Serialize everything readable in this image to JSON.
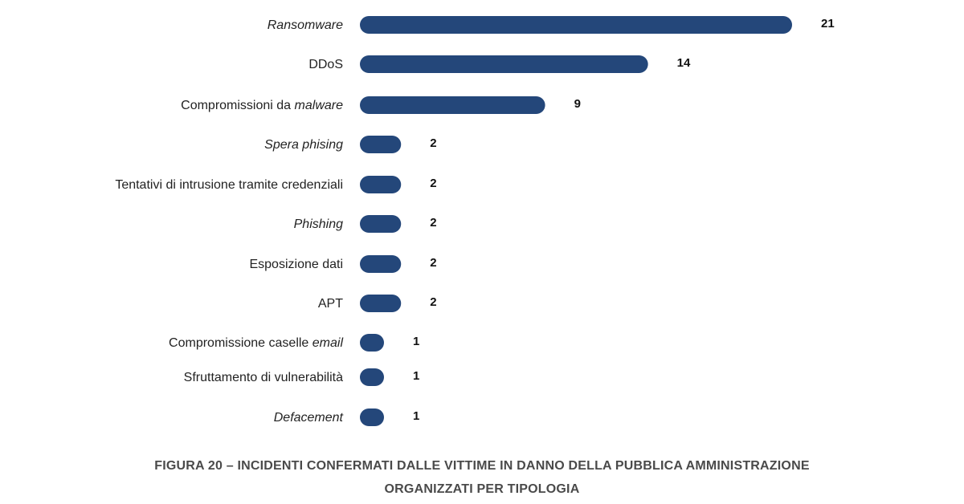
{
  "chart_data": {
    "type": "bar",
    "orientation": "horizontal",
    "categories": [
      "Ransomware",
      "DDoS",
      "Compromissioni da malware",
      "Spera phising",
      "Tentativi di intrusione tramite credenziali",
      "Phishing",
      "Esposizione dati",
      "APT",
      "Compromissione caselle email",
      "Sfruttamento di vulnerabilità",
      "Defacement"
    ],
    "category_segments": [
      [
        {
          "text": "Ransomware",
          "italic": true
        }
      ],
      [
        {
          "text": "DDoS",
          "italic": false
        }
      ],
      [
        {
          "text": "Compromissioni da ",
          "italic": false
        },
        {
          "text": "malware",
          "italic": true
        }
      ],
      [
        {
          "text": "Spera phising",
          "italic": true
        }
      ],
      [
        {
          "text": "Tentativi di intrusione tramite credenziali",
          "italic": false
        }
      ],
      [
        {
          "text": "Phishing",
          "italic": true
        }
      ],
      [
        {
          "text": "Esposizione dati",
          "italic": false
        }
      ],
      [
        {
          "text": "APT",
          "italic": false
        }
      ],
      [
        {
          "text": "Compromissione caselle ",
          "italic": false
        },
        {
          "text": "email",
          "italic": true
        }
      ],
      [
        {
          "text": "Sfruttamento di vulnerabilità",
          "italic": false
        }
      ],
      [
        {
          "text": "Defacement",
          "italic": true
        }
      ]
    ],
    "values": [
      21,
      14,
      9,
      2,
      2,
      2,
      2,
      2,
      1,
      1,
      1
    ],
    "xlim": [
      0,
      21
    ],
    "grid": false,
    "legend": "none",
    "bar_color": "#24477a",
    "caption": [
      "FIGURA 20 – INCIDENTI CONFERMATI DALLE VITTIME IN DANNO DELLA PUBBLICA AMMINISTRAZIONE",
      "ORGANIZZATI PER TIPOLOGIA"
    ]
  }
}
